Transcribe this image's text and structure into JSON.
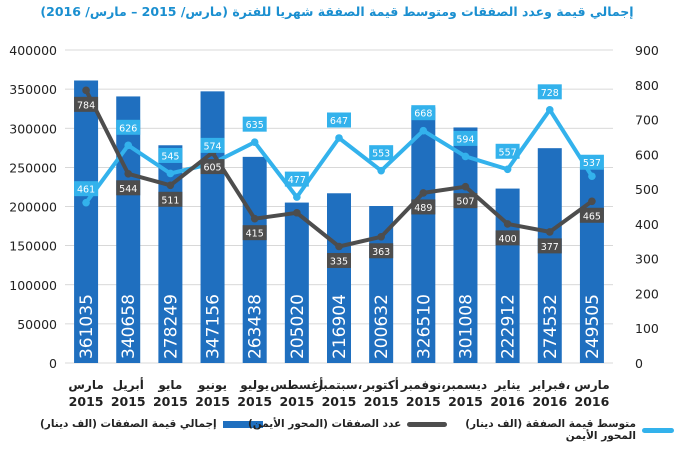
{
  "chart_data": {
    "type": "bar+line",
    "title": "إجمالي قيمة وعدد الصفقات ومتوسط قيمة الصفقة شهريا للفترة (مارس/ 2015 – مارس/ 2016)",
    "categories": [
      [
        "مارس",
        "2015"
      ],
      [
        "أبريل",
        "2015"
      ],
      [
        "مايو",
        "2015"
      ],
      [
        "يونيو",
        "2015"
      ],
      [
        "يوليو",
        "2015"
      ],
      [
        "أغسطس",
        "2015"
      ],
      [
        "سبتمبر،",
        "2015"
      ],
      [
        "أكتوبر",
        "2015"
      ],
      [
        "نوفمبر،",
        "2015"
      ],
      [
        "ديسمبر",
        "2015"
      ],
      [
        "يناير",
        "2016"
      ],
      [
        "فبراير،",
        "2016"
      ],
      [
        "مارس",
        "2016"
      ]
    ],
    "series": [
      {
        "name": "إجمالي قيمة الصفقات (الف دينار)",
        "type": "bar",
        "axis": "left",
        "values": [
          361035,
          340658,
          278249,
          347156,
          263438,
          205020,
          216904,
          200632,
          326510,
          301008,
          222912,
          274532,
          249505
        ],
        "labels": [
          "361035",
          "340658",
          "278249",
          "347156",
          "263438",
          "205020",
          "216904",
          "200632",
          "326510",
          "301008",
          "222912",
          "274532",
          "249505"
        ]
      },
      {
        "name": "عدد الصفقات (المحور الأيمن)",
        "type": "line",
        "axis": "right",
        "values": [
          784,
          544,
          511,
          605,
          415,
          432,
          335,
          363,
          489,
          507,
          400,
          377,
          465
        ],
        "labels": [
          "784",
          "544",
          "511",
          "605",
          "415",
          "",
          "335",
          "363",
          "489",
          "507",
          "400",
          "377",
          "465"
        ]
      },
      {
        "name": "متوسط قيمة الصفقة (الف دينار) المحور الأيمن",
        "type": "line",
        "axis": "right",
        "values": [
          461,
          626,
          545,
          574,
          635,
          477,
          647,
          553,
          668,
          594,
          557,
          728,
          537
        ],
        "labels": [
          "461",
          "626",
          "545",
          "574",
          "635",
          "477",
          "647",
          "553",
          "668",
          "594",
          "557",
          "728",
          "537"
        ]
      }
    ],
    "left_axis": {
      "min": 0,
      "max": 400000,
      "step": 50000,
      "ticks": [
        "0",
        "50000",
        "100000",
        "150000",
        "200000",
        "250000",
        "300000",
        "350000",
        "400000"
      ]
    },
    "right_axis": {
      "min": 0,
      "max": 900,
      "step": 100,
      "ticks": [
        "0",
        "100",
        "200",
        "300",
        "400",
        "500",
        "600",
        "700",
        "800",
        "900"
      ]
    },
    "grid": true,
    "legend_position": "bottom",
    "colors": {
      "bars": "#1f6fbf",
      "count_line": "#4d4d4d",
      "avg_line": "#33b2ec",
      "title": "#1a8fd0",
      "grid": "#cccccc"
    }
  }
}
